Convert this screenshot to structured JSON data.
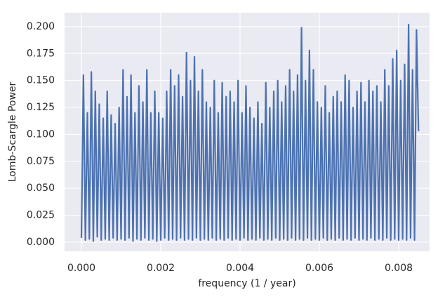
{
  "chart_data": {
    "type": "line",
    "xlabel": "frequency (1 / year)",
    "ylabel": "Lomb-Scargle Power",
    "color": "#4c72b0",
    "grid": true,
    "xlim": [
      -0.000425,
      0.008779
    ],
    "ylim": [
      -0.0085,
      0.213
    ],
    "xticks": [
      {
        "value": 0,
        "label": "0.000"
      },
      {
        "value": 0.002,
        "label": "0.002"
      },
      {
        "value": 0.004,
        "label": "0.004"
      },
      {
        "value": 0.006,
        "label": "0.006"
      },
      {
        "value": 0.008,
        "label": "0.008"
      }
    ],
    "yticks": [
      {
        "value": 0,
        "label": "0.000"
      },
      {
        "value": 0.025,
        "label": "0.025"
      },
      {
        "value": 0.05,
        "label": "0.050"
      },
      {
        "value": 0.075,
        "label": "0.075"
      },
      {
        "value": 0.1,
        "label": "0.100"
      },
      {
        "value": 0.125,
        "label": "0.125"
      },
      {
        "value": 0.15,
        "label": "0.150"
      },
      {
        "value": 0.175,
        "label": "0.175"
      },
      {
        "value": 0.2,
        "label": "0.200"
      }
    ],
    "x": [
      0,
      5e-05,
      0.0001,
      0.00015,
      0.0002,
      0.00025,
      0.0003,
      0.00035,
      0.0004,
      0.00045,
      0.0005,
      0.00055,
      0.0006,
      0.00065,
      0.0007,
      0.00075,
      0.0008,
      0.00085,
      0.0009,
      0.00095,
      0.001,
      0.00105,
      0.0011,
      0.00115,
      0.0012,
      0.00125,
      0.0013,
      0.00135,
      0.0014,
      0.00145,
      0.0015,
      0.00155,
      0.0016,
      0.00165,
      0.0017,
      0.00175,
      0.0018,
      0.00185,
      0.0019,
      0.00195,
      0.002,
      0.00205,
      0.0021,
      0.00215,
      0.0022,
      0.00225,
      0.0023,
      0.00235,
      0.0024,
      0.00245,
      0.0025,
      0.00255,
      0.0026,
      0.00265,
      0.0027,
      0.00275,
      0.0028,
      0.00285,
      0.0029,
      0.00295,
      0.003,
      0.00305,
      0.0031,
      0.00315,
      0.0032,
      0.00325,
      0.0033,
      0.00335,
      0.0034,
      0.00345,
      0.0035,
      0.00355,
      0.0036,
      0.00365,
      0.0037,
      0.00375,
      0.0038,
      0.00385,
      0.0039,
      0.00395,
      0.004,
      0.00405,
      0.0041,
      0.00415,
      0.0042,
      0.00425,
      0.0043,
      0.00435,
      0.0044,
      0.00445,
      0.0045,
      0.00455,
      0.0046,
      0.00465,
      0.0047,
      0.00475,
      0.0048,
      0.00485,
      0.0049,
      0.00495,
      0.005,
      0.00505,
      0.0051,
      0.00515,
      0.0052,
      0.00525,
      0.0053,
      0.00535,
      0.0054,
      0.00545,
      0.0055,
      0.00555,
      0.0056,
      0.00565,
      0.0057,
      0.00575,
      0.0058,
      0.00585,
      0.0059,
      0.00595,
      0.006,
      0.00605,
      0.0061,
      0.00615,
      0.0062,
      0.00625,
      0.0063,
      0.00635,
      0.0064,
      0.00645,
      0.0065,
      0.00655,
      0.0066,
      0.00665,
      0.0067,
      0.00675,
      0.0068,
      0.00685,
      0.0069,
      0.00695,
      0.007,
      0.00705,
      0.0071,
      0.00715,
      0.0072,
      0.00725,
      0.0073,
      0.00735,
      0.0074,
      0.00745,
      0.0075,
      0.00755,
      0.0076,
      0.00765,
      0.0077,
      0.00775,
      0.0078,
      0.00785,
      0.0079,
      0.00795,
      0.008,
      0.00805,
      0.0081,
      0.00815,
      0.0082,
      0.00825,
      0.0083,
      0.00835,
      0.0084,
      0.00845,
      0.0085
    ],
    "values": [
      0.004,
      0.155,
      0.002,
      0.12,
      0.003,
      0.158,
      0.001,
      0.14,
      0.005,
      0.128,
      0.002,
      0.115,
      0.003,
      0.14,
      0.002,
      0.118,
      0.004,
      0.11,
      0.002,
      0.125,
      0.003,
      0.16,
      0.002,
      0.135,
      0.004,
      0.155,
      0.001,
      0.12,
      0.003,
      0.145,
      0.002,
      0.13,
      0.004,
      0.16,
      0.002,
      0.12,
      0.003,
      0.14,
      0.001,
      0.12,
      0.002,
      0.115,
      0.004,
      0.14,
      0.002,
      0.16,
      0.003,
      0.145,
      0.002,
      0.155,
      0.004,
      0.135,
      0.002,
      0.176,
      0.003,
      0.15,
      0.002,
      0.172,
      0.004,
      0.14,
      0.002,
      0.16,
      0.003,
      0.13,
      0.002,
      0.125,
      0.004,
      0.15,
      0.002,
      0.12,
      0.003,
      0.148,
      0.002,
      0.135,
      0.004,
      0.14,
      0.002,
      0.13,
      0.003,
      0.15,
      0.002,
      0.12,
      0.004,
      0.145,
      0.002,
      0.125,
      0.003,
      0.115,
      0.002,
      0.13,
      0.004,
      0.11,
      0.002,
      0.148,
      0.003,
      0.125,
      0.002,
      0.14,
      0.004,
      0.15,
      0.002,
      0.13,
      0.003,
      0.145,
      0.002,
      0.16,
      0.004,
      0.14,
      0.002,
      0.155,
      0.003,
      0.199,
      0.002,
      0.15,
      0.004,
      0.178,
      0.002,
      0.16,
      0.003,
      0.13,
      0.002,
      0.125,
      0.004,
      0.145,
      0.002,
      0.12,
      0.003,
      0.135,
      0.002,
      0.14,
      0.004,
      0.13,
      0.002,
      0.155,
      0.003,
      0.15,
      0.002,
      0.125,
      0.004,
      0.14,
      0.002,
      0.148,
      0.003,
      0.13,
      0.002,
      0.15,
      0.004,
      0.14,
      0.002,
      0.145,
      0.003,
      0.13,
      0.002,
      0.16,
      0.004,
      0.145,
      0.002,
      0.17,
      0.003,
      0.178,
      0.002,
      0.15,
      0.003,
      0.165,
      0.002,
      0.202,
      0.004,
      0.16,
      0.002,
      0.197,
      0.103
    ]
  }
}
